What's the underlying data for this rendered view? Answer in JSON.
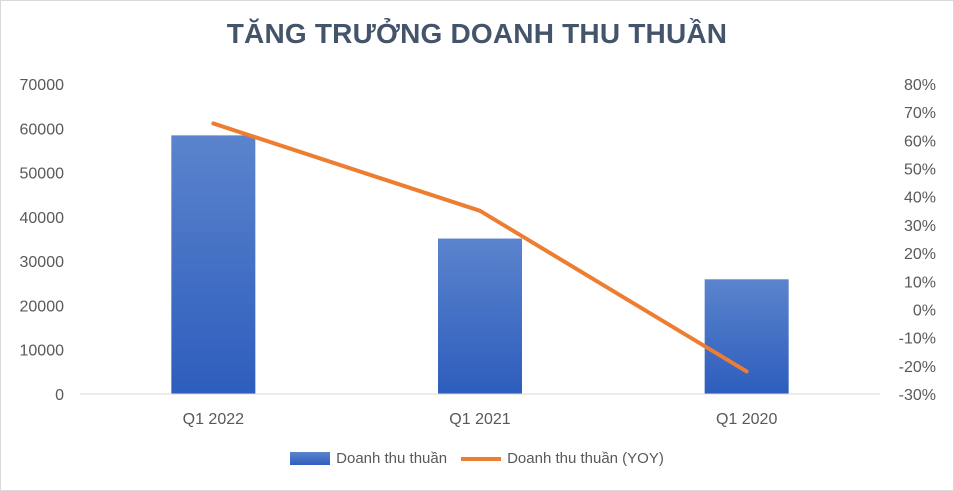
{
  "chart_data": {
    "type": "bar",
    "title": "TĂNG TRƯỞNG DOANH THU THUẦN",
    "categories": [
      "Q1 2022",
      "Q1 2021",
      "Q1 2020"
    ],
    "series": [
      {
        "name": "Doanh thu thuần",
        "type": "bar",
        "axis": "left",
        "values": [
          58400,
          35100,
          25900
        ],
        "color": "#3f6fcb"
      },
      {
        "name": "Doanh thu thuần (YOY)",
        "type": "line",
        "axis": "right",
        "values": [
          0.66,
          0.35,
          -0.22
        ],
        "color": "#ed7d31"
      }
    ],
    "y_left": {
      "min": 0,
      "max": 70000,
      "step": 10000,
      "tick_labels": [
        "0",
        "10000",
        "20000",
        "30000",
        "40000",
        "50000",
        "60000",
        "70000"
      ]
    },
    "y_right": {
      "min": -0.3,
      "max": 0.8,
      "step": 0.1,
      "tick_labels": [
        "-30%",
        "-20%",
        "-10%",
        "0%",
        "10%",
        "20%",
        "30%",
        "40%",
        "50%",
        "60%",
        "70%",
        "80%"
      ]
    },
    "grid": false,
    "legend_position": "bottom"
  }
}
